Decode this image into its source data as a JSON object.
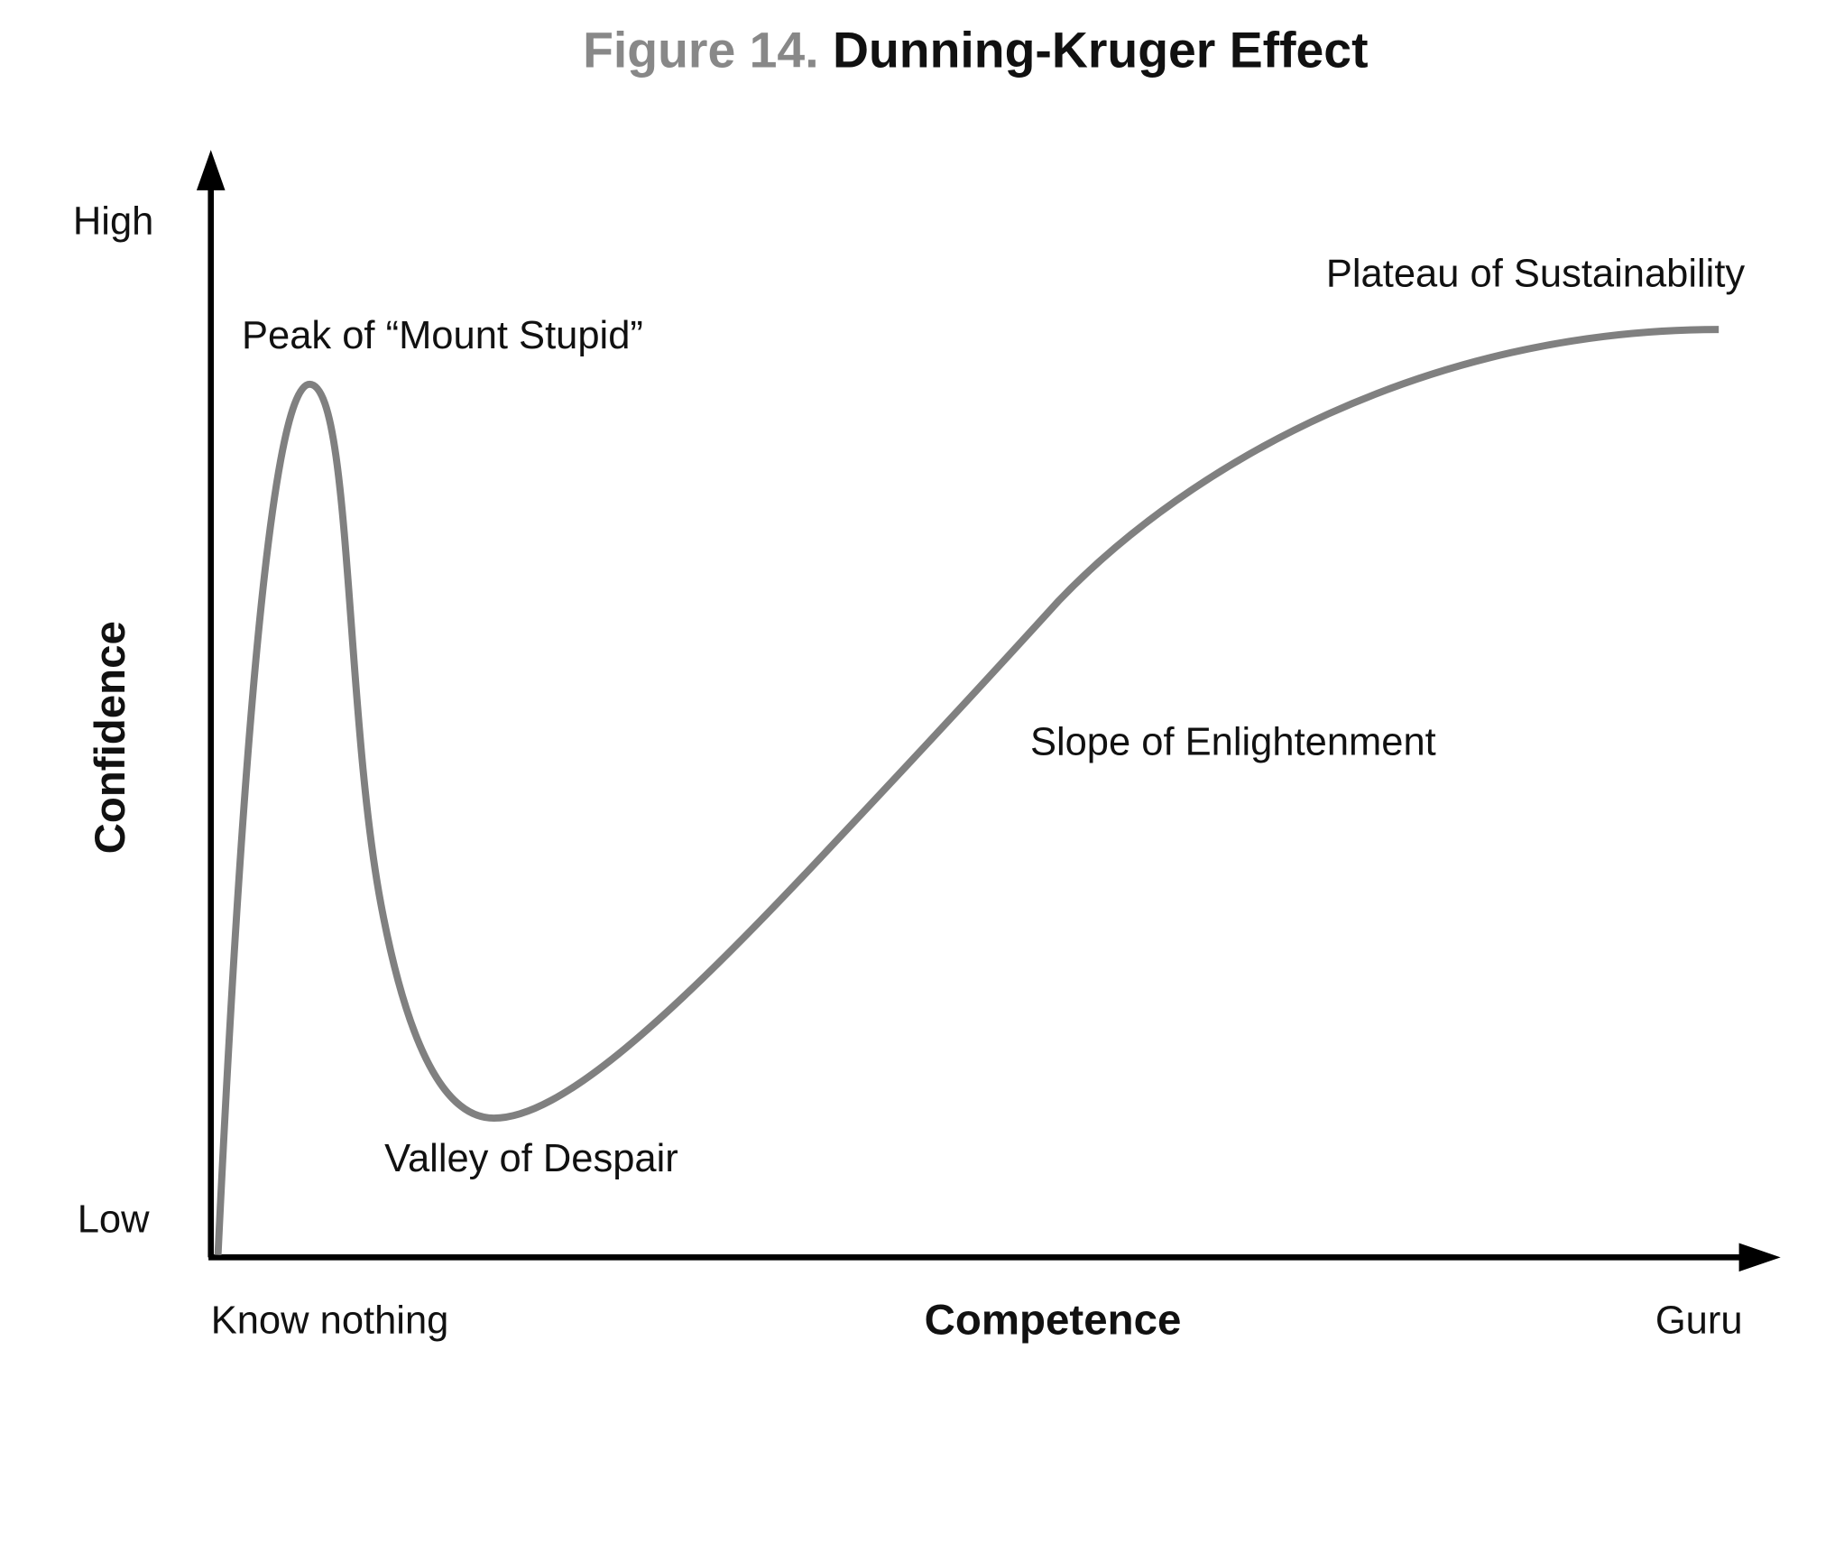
{
  "title": {
    "prefix": "Figure 14.",
    "text": "Dunning-Kruger Effect"
  },
  "y_axis": {
    "label": "Confidence",
    "top": "High",
    "bottom": "Low"
  },
  "x_axis": {
    "label": "Competence",
    "left": "Know nothing",
    "right": "Guru"
  },
  "annotations": {
    "peak": "Peak of “Mount Stupid”",
    "valley": "Valley of Despair",
    "slope": "Slope of Enlightenment",
    "plateau": "Plateau of Sustainability"
  }
}
